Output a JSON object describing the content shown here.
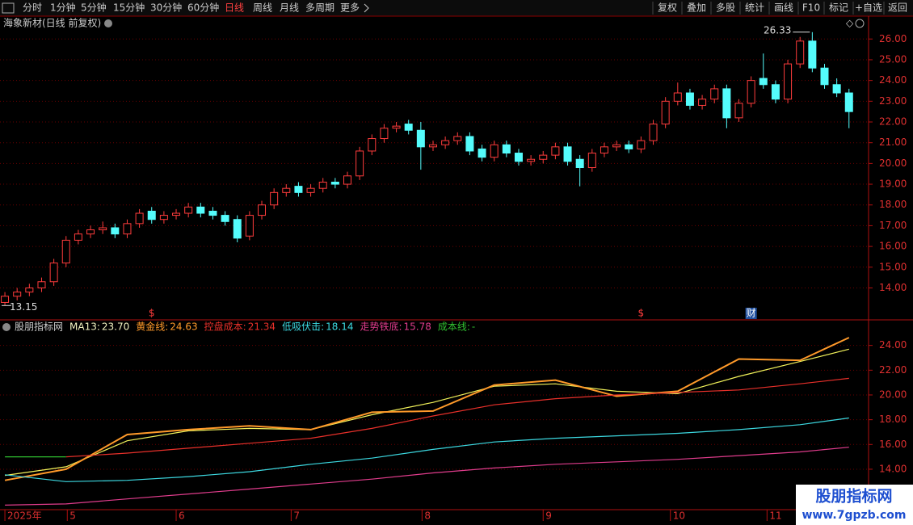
{
  "toolbar": {
    "left": [
      "分时",
      "1分钟",
      "5分钟",
      "15分钟",
      "30分钟",
      "60分钟",
      "日线",
      "周线",
      "月线",
      "多周期",
      "更多"
    ],
    "active": 6,
    "right": [
      "复权",
      "叠加",
      "多股",
      "统计",
      "画线",
      "F10",
      "标记",
      "+自选",
      "返回"
    ]
  },
  "chart_data": [
    {
      "type": "candlestick",
      "title": "海象新材(日线 前复权)",
      "x": [
        0,
        1,
        2,
        3,
        4,
        5,
        6,
        7,
        8,
        9,
        10,
        11,
        12,
        13,
        14,
        15,
        16,
        17,
        18,
        19,
        20,
        21,
        22,
        23,
        24,
        25,
        26,
        27,
        28,
        29,
        30,
        31,
        32,
        33,
        34,
        35,
        36,
        37,
        38,
        39,
        40,
        41,
        42,
        43,
        44,
        45,
        46,
        47,
        48,
        49,
        50,
        51,
        52,
        53,
        54,
        55,
        56,
        57,
        58,
        59,
        60,
        61,
        62,
        63,
        64,
        65,
        66,
        67,
        68,
        69
      ],
      "open": [
        13.3,
        13.6,
        13.8,
        14.0,
        14.3,
        15.2,
        16.3,
        16.6,
        16.8,
        16.9,
        16.6,
        17.1,
        17.7,
        17.3,
        17.5,
        17.6,
        17.9,
        17.7,
        17.5,
        17.3,
        16.5,
        17.5,
        18.0,
        18.6,
        18.9,
        18.6,
        18.8,
        19.1,
        19.0,
        19.4,
        20.6,
        21.2,
        21.7,
        21.9,
        21.6,
        20.8,
        20.9,
        21.1,
        21.3,
        20.7,
        20.3,
        20.9,
        20.5,
        20.1,
        20.2,
        20.4,
        20.8,
        20.2,
        19.8,
        20.5,
        20.8,
        20.9,
        20.7,
        21.1,
        21.9,
        23.0,
        23.4,
        22.8,
        23.1,
        23.6,
        22.2,
        22.9,
        24.1,
        23.8,
        23.1,
        24.8,
        25.9,
        24.6,
        23.8,
        23.4
      ],
      "high": [
        13.8,
        14.0,
        14.2,
        14.5,
        15.4,
        16.5,
        16.8,
        17.0,
        17.2,
        17.1,
        17.3,
        17.8,
        17.9,
        17.7,
        17.8,
        18.1,
        18.1,
        17.9,
        17.7,
        17.5,
        17.7,
        18.2,
        18.8,
        19.0,
        19.1,
        19.0,
        19.3,
        19.3,
        19.6,
        20.8,
        21.4,
        21.9,
        22.0,
        22.1,
        22.0,
        21.1,
        21.3,
        21.5,
        21.5,
        20.9,
        21.1,
        21.1,
        20.7,
        20.4,
        20.6,
        21.0,
        21.0,
        20.4,
        20.7,
        21.0,
        21.1,
        21.1,
        21.3,
        22.1,
        23.2,
        23.9,
        23.6,
        23.3,
        23.8,
        23.8,
        23.1,
        24.2,
        25.3,
        24.0,
        25.0,
        26.1,
        26.33,
        24.8,
        24.1,
        23.6
      ],
      "low": [
        13.15,
        13.4,
        13.6,
        13.8,
        14.1,
        15.0,
        16.1,
        16.4,
        16.6,
        16.4,
        16.4,
        16.9,
        17.1,
        17.1,
        17.3,
        17.4,
        17.4,
        17.3,
        17.0,
        16.2,
        16.3,
        17.3,
        17.8,
        18.4,
        18.4,
        18.4,
        18.6,
        18.8,
        18.8,
        19.2,
        20.4,
        21.0,
        21.5,
        21.4,
        19.7,
        20.6,
        20.7,
        20.9,
        20.4,
        20.1,
        20.1,
        20.3,
        19.9,
        19.9,
        20.0,
        20.2,
        19.9,
        18.9,
        19.6,
        20.3,
        20.6,
        20.5,
        20.5,
        20.9,
        21.7,
        22.8,
        22.6,
        22.6,
        22.9,
        21.7,
        22.0,
        22.7,
        23.6,
        22.9,
        22.9,
        24.6,
        24.4,
        23.6,
        23.2,
        21.7
      ],
      "close": [
        13.6,
        13.8,
        14.0,
        14.3,
        15.2,
        16.3,
        16.6,
        16.8,
        16.9,
        16.6,
        17.1,
        17.6,
        17.3,
        17.5,
        17.6,
        17.9,
        17.6,
        17.5,
        17.2,
        16.4,
        17.5,
        18.0,
        18.6,
        18.8,
        18.6,
        18.8,
        19.1,
        19.0,
        19.4,
        20.6,
        21.2,
        21.7,
        21.8,
        21.6,
        20.8,
        20.9,
        21.1,
        21.3,
        20.6,
        20.3,
        20.9,
        20.5,
        20.1,
        20.2,
        20.4,
        20.8,
        20.1,
        19.8,
        20.5,
        20.8,
        20.9,
        20.7,
        21.1,
        21.9,
        23.0,
        23.4,
        22.8,
        23.1,
        23.6,
        22.2,
        22.9,
        24.0,
        23.8,
        23.1,
        24.8,
        25.9,
        24.6,
        23.8,
        23.4,
        22.5
      ],
      "up_color": "#ff3c3c",
      "down_color": "#54fcfc",
      "xlim": [
        -0.4,
        70.6
      ],
      "ylim": [
        12.5,
        26.4
      ],
      "yticks": [
        {
          "value": 14,
          "label": "14.00"
        },
        {
          "value": 15,
          "label": "15.00"
        },
        {
          "value": 16,
          "label": "16.00"
        },
        {
          "value": 17,
          "label": "17.00"
        },
        {
          "value": 18,
          "label": "18.00"
        },
        {
          "value": 19,
          "label": "19.00"
        },
        {
          "value": 20,
          "label": "20.00"
        },
        {
          "value": 21,
          "label": "21.00"
        },
        {
          "value": 22,
          "label": "22.00"
        },
        {
          "value": 23,
          "label": "23.00"
        },
        {
          "value": 24,
          "label": "24.00"
        },
        {
          "value": 25,
          "label": "25.00"
        },
        {
          "value": 26,
          "label": "26.00"
        }
      ],
      "xticks": [
        {
          "value": 0,
          "label": "2025年"
        },
        {
          "value": 5.1,
          "label": "5"
        },
        {
          "value": 14.0,
          "label": "6"
        },
        {
          "value": 23.4,
          "label": "7"
        },
        {
          "value": 34.1,
          "label": "8"
        },
        {
          "value": 44.0,
          "label": "9"
        },
        {
          "value": 54.4,
          "label": "10"
        },
        {
          "value": 62.3,
          "label": "11"
        }
      ],
      "annotations": [
        {
          "x": 66,
          "y": 26.33,
          "label": "26.33"
        },
        {
          "x": 0,
          "y": 13.15,
          "label": "13.15"
        }
      ],
      "markers": [
        {
          "x": 12,
          "label": "$"
        },
        {
          "x": 52,
          "label": "$"
        },
        {
          "x": 61,
          "label": "财"
        }
      ],
      "grid": true
    },
    {
      "type": "line",
      "title": "股朋指标网",
      "x": [
        0,
        5,
        10,
        15,
        20,
        25,
        30,
        35,
        40,
        45,
        50,
        55,
        60,
        65,
        69
      ],
      "xlim": [
        -0.4,
        70.6
      ],
      "ylim": [
        10.8,
        26.0
      ],
      "yticks": [
        {
          "value": 14,
          "label": "14.00"
        },
        {
          "value": 16,
          "label": "16.00"
        },
        {
          "value": 18,
          "label": "18.00"
        },
        {
          "value": 20,
          "label": "20.00"
        },
        {
          "value": 22,
          "label": "22.00"
        },
        {
          "value": 24,
          "label": "24.00"
        }
      ],
      "series": [
        {
          "name": "MA13:",
          "legend_label": "23.70",
          "color": "#f2f25a",
          "values": [
            13.5,
            14.2,
            16.3,
            17.1,
            17.3,
            17.2,
            18.4,
            19.4,
            20.7,
            20.9,
            20.3,
            20.1,
            21.5,
            22.7,
            23.7
          ]
        },
        {
          "name": "黄金线:",
          "legend_label": "24.63",
          "color": "#ff9a2a",
          "values": [
            13.1,
            14.0,
            16.8,
            17.2,
            17.5,
            17.2,
            18.6,
            18.7,
            20.8,
            21.2,
            19.9,
            20.3,
            22.9,
            22.8,
            24.63
          ]
        },
        {
          "name": "控盘成本:",
          "legend_label": "21.34",
          "color": "#e8302a",
          "values": [
            null,
            15.0,
            15.3,
            15.7,
            16.1,
            16.5,
            17.3,
            18.3,
            19.2,
            19.7,
            20.0,
            20.2,
            20.4,
            20.9,
            21.34
          ]
        },
        {
          "name": "低吸伏击:",
          "legend_label": "18.14",
          "color": "#3cd8e0",
          "values": [
            13.55,
            13.0,
            13.1,
            13.4,
            13.8,
            14.4,
            14.9,
            15.6,
            16.2,
            16.5,
            16.7,
            16.9,
            17.2,
            17.6,
            18.14
          ]
        },
        {
          "name": "走势铁底:",
          "legend_label": "15.78",
          "color": "#e03c8c",
          "values": [
            11.1,
            11.2,
            11.6,
            12.0,
            12.4,
            12.8,
            13.2,
            13.7,
            14.1,
            14.4,
            14.6,
            14.8,
            15.1,
            15.4,
            15.78
          ]
        },
        {
          "name": "成本线:",
          "legend_label": "-",
          "color": "#30c030",
          "values": [
            15.0,
            15.0,
            null,
            null,
            null,
            null,
            null,
            null,
            null,
            null,
            null,
            null,
            null,
            null,
            null
          ]
        }
      ],
      "grid": true
    }
  ],
  "watermark": {
    "name": "股朋指标网",
    "url": "www.7gpzb.com"
  }
}
